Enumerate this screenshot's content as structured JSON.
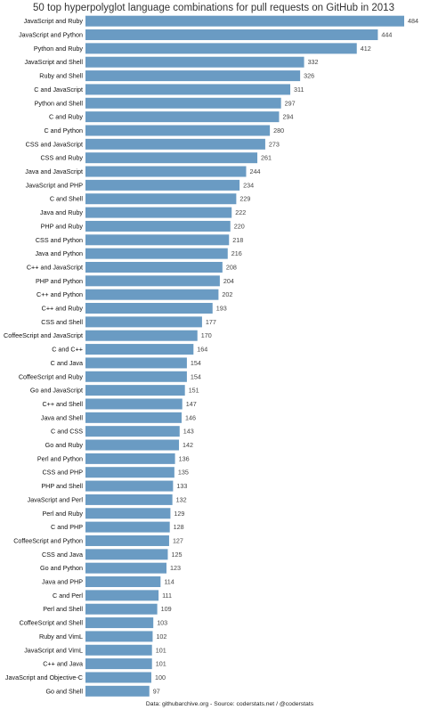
{
  "chart_data": {
    "type": "bar",
    "orientation": "horizontal",
    "title": "50 top hyperpolyglot language combinations for pull requests on GitHub in 2013",
    "footer": "Data: githubarchive.org - Source: coderstats.net / @coderstats",
    "bar_color": "#6a9bc3",
    "grid": false,
    "categories": [
      "JavaScript and Ruby",
      "JavaScript and Python",
      "Python and Ruby",
      "JavaScript and Shell",
      "Ruby and Shell",
      "C and JavaScript",
      "Python and Shell",
      "C and Ruby",
      "C and Python",
      "CSS and JavaScript",
      "CSS and Ruby",
      "Java and JavaScript",
      "JavaScript and PHP",
      "C and Shell",
      "Java and Ruby",
      "PHP and Ruby",
      "CSS and Python",
      "Java and Python",
      "C++ and JavaScript",
      "PHP and Python",
      "C++ and Python",
      "C++ and Ruby",
      "CSS and Shell",
      "CoffeeScript and JavaScript",
      "C and C++",
      "C and Java",
      "CoffeeScript and Ruby",
      "Go and JavaScript",
      "C++ and Shell",
      "Java and Shell",
      "C and CSS",
      "Go and Ruby",
      "Perl and Python",
      "CSS and PHP",
      "PHP and Shell",
      "JavaScript and Perl",
      "Perl and Ruby",
      "C and PHP",
      "CoffeeScript and Python",
      "CSS and Java",
      "Go and Python",
      "Java and PHP",
      "C and Perl",
      "Perl and Shell",
      "CoffeeScript and Shell",
      "Ruby and VimL",
      "JavaScript and VimL",
      "C++ and Java",
      "JavaScript and Objective-C",
      "Go and Shell"
    ],
    "values": [
      484,
      444,
      412,
      332,
      326,
      311,
      297,
      294,
      280,
      273,
      261,
      244,
      234,
      229,
      222,
      220,
      218,
      216,
      208,
      204,
      202,
      193,
      177,
      170,
      164,
      154,
      154,
      151,
      147,
      146,
      143,
      142,
      136,
      135,
      133,
      132,
      129,
      128,
      127,
      125,
      123,
      114,
      111,
      109,
      103,
      102,
      101,
      101,
      100,
      97
    ],
    "xlim": [
      0,
      484
    ]
  }
}
